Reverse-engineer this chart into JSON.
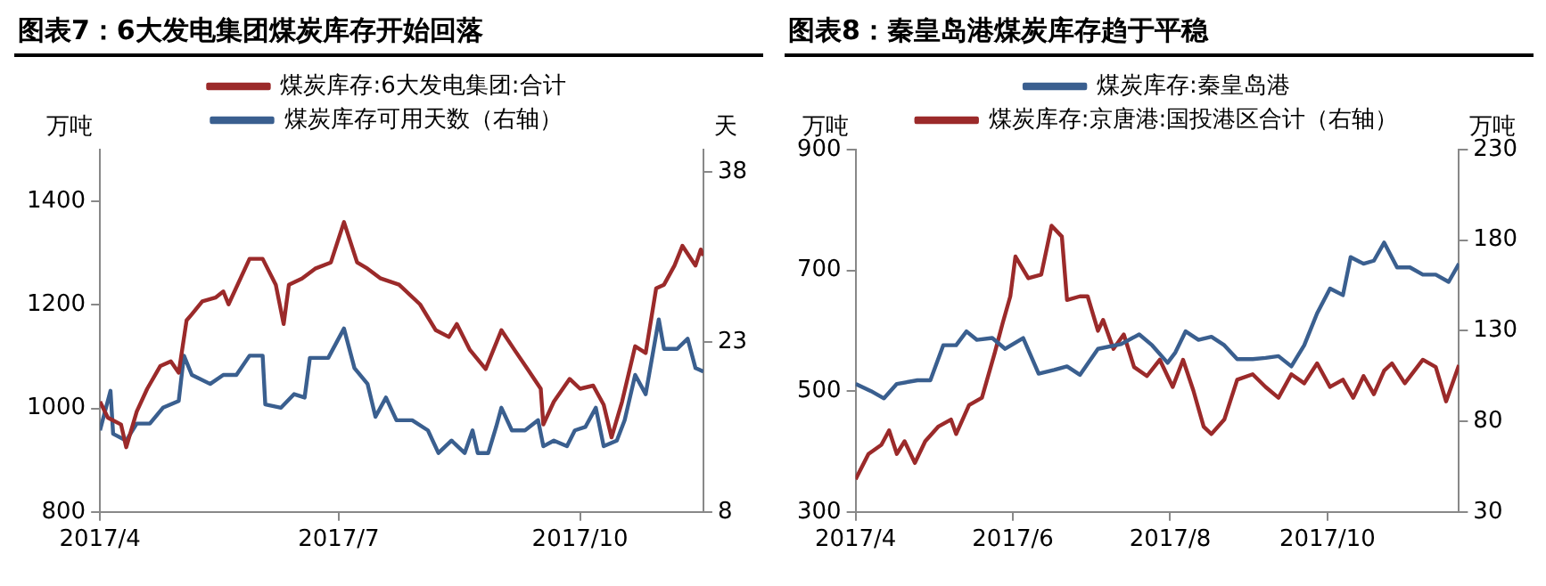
{
  "chart_data": [
    {
      "type": "line",
      "title": "图表7：6大发电集团煤炭库存开始回落",
      "ylabel": "万吨",
      "y2label": "天",
      "legend": "top",
      "grid": false,
      "marker": "none",
      "line_style": "solid",
      "xlim": [
        "2017-04-01",
        "2017-11-17"
      ],
      "xticks": [
        {
          "value": "2017-04-01",
          "label": "2017/4"
        },
        {
          "value": "2017-07-01",
          "label": "2017/7"
        },
        {
          "value": "2017-10-01",
          "label": "2017/10"
        }
      ],
      "ylim": [
        800,
        1500
      ],
      "yticks": [
        800,
        1000,
        1200,
        1400
      ],
      "y2lim": [
        8,
        40
      ],
      "y2ticks": [
        8,
        23,
        38
      ],
      "series": [
        {
          "name": "煤炭库存:6大发电集团:合计",
          "color": "#9b2a2a",
          "x": [
            "2017-04-01",
            "2017-04-04",
            "2017-04-09",
            "2017-04-11",
            "2017-04-15",
            "2017-04-19",
            "2017-04-24",
            "2017-04-28",
            "2017-05-01",
            "2017-05-04",
            "2017-05-06",
            "2017-05-10",
            "2017-05-15",
            "2017-05-18",
            "2017-05-20",
            "2017-05-28",
            "2017-06-02",
            "2017-06-07",
            "2017-06-10",
            "2017-06-12",
            "2017-06-17",
            "2017-06-22",
            "2017-06-28",
            "2017-07-03",
            "2017-07-08",
            "2017-07-12",
            "2017-07-17",
            "2017-07-24",
            "2017-08-01",
            "2017-08-07",
            "2017-08-12",
            "2017-08-15",
            "2017-08-20",
            "2017-08-26",
            "2017-09-01",
            "2017-09-06",
            "2017-09-11",
            "2017-09-16",
            "2017-09-17",
            "2017-09-21",
            "2017-09-27",
            "2017-10-01",
            "2017-10-06",
            "2017-10-10",
            "2017-10-13",
            "2017-10-17",
            "2017-10-22",
            "2017-10-26",
            "2017-10-30",
            "2017-11-02",
            "2017-11-06",
            "2017-11-09",
            "2017-11-14",
            "2017-11-16",
            "2017-11-17"
          ],
          "values": [
            1013,
            982,
            969,
            925,
            994,
            1038,
            1082,
            1091,
            1069,
            1170,
            1182,
            1207,
            1214,
            1226,
            1201,
            1289,
            1289,
            1239,
            1163,
            1239,
            1251,
            1270,
            1282,
            1360,
            1282,
            1270,
            1251,
            1239,
            1201,
            1151,
            1138,
            1163,
            1113,
            1076,
            1151,
            1113,
            1076,
            1038,
            969,
            1013,
            1057,
            1038,
            1044,
            1007,
            944,
            1013,
            1120,
            1107,
            1232,
            1239,
            1276,
            1314,
            1276,
            1307,
            1295
          ]
        },
        {
          "name": "煤炭库存可用天数（右轴）",
          "color": "#3a5f8f",
          "axis": "y2",
          "x": [
            "2017-04-01",
            "2017-04-05",
            "2017-04-06",
            "2017-04-11",
            "2017-04-15",
            "2017-04-20",
            "2017-04-25",
            "2017-05-01",
            "2017-05-03",
            "2017-05-06",
            "2017-05-13",
            "2017-05-18",
            "2017-05-23",
            "2017-05-28",
            "2017-06-02",
            "2017-06-03",
            "2017-06-09",
            "2017-06-14",
            "2017-06-18",
            "2017-06-20",
            "2017-06-27",
            "2017-07-03",
            "2017-07-07",
            "2017-07-12",
            "2017-07-15",
            "2017-07-19",
            "2017-07-23",
            "2017-07-29",
            "2017-08-04",
            "2017-08-08",
            "2017-08-13",
            "2017-08-18",
            "2017-08-21",
            "2017-08-23",
            "2017-08-27",
            "2017-08-30",
            "2017-09-01",
            "2017-09-05",
            "2017-09-10",
            "2017-09-15",
            "2017-09-17",
            "2017-09-21",
            "2017-09-26",
            "2017-09-29",
            "2017-10-03",
            "2017-10-07",
            "2017-10-10",
            "2017-10-15",
            "2017-10-18",
            "2017-10-22",
            "2017-10-26",
            "2017-10-31",
            "2017-11-02",
            "2017-11-07",
            "2017-11-11",
            "2017-11-14",
            "2017-11-17"
          ],
          "values": [
            15.2,
            18.7,
            14.9,
            14.3,
            15.8,
            15.8,
            17.2,
            17.8,
            21.8,
            20.1,
            19.3,
            20.1,
            20.1,
            21.8,
            21.8,
            17.5,
            17.2,
            18.4,
            18.1,
            21.6,
            21.6,
            24.2,
            20.7,
            19.3,
            16.4,
            18.1,
            16.1,
            16.1,
            15.2,
            13.2,
            14.3,
            13.2,
            15.2,
            13.2,
            13.2,
            15.5,
            17.2,
            15.2,
            15.2,
            16.1,
            13.8,
            14.3,
            13.8,
            15.2,
            15.5,
            17.2,
            13.8,
            14.3,
            16.1,
            20.1,
            18.4,
            25.0,
            22.4,
            22.4,
            23.3,
            20.7,
            20.4
          ]
        }
      ]
    },
    {
      "type": "line",
      "title": "图表8：秦皇岛港煤炭库存趋于平稳",
      "ylabel": "万吨",
      "y2label": "万吨",
      "legend": "top",
      "grid": false,
      "marker": "none",
      "line_style": "solid",
      "xlim": [
        "2017-04-01",
        "2017-11-21"
      ],
      "xticks": [
        {
          "value": "2017-04-01",
          "label": "2017/4"
        },
        {
          "value": "2017-06-01",
          "label": "2017/6"
        },
        {
          "value": "2017-08-01",
          "label": "2017/8"
        },
        {
          "value": "2017-10-01",
          "label": "2017/10"
        }
      ],
      "ylim": [
        300,
        900
      ],
      "yticks": [
        300,
        500,
        700,
        900
      ],
      "y2lim": [
        30,
        230
      ],
      "y2ticks": [
        30,
        80,
        130,
        180,
        230
      ],
      "series": [
        {
          "name": "煤炭库存:秦皇岛港",
          "color": "#3a5f8f",
          "x": [
            "2017-04-01",
            "2017-04-07",
            "2017-04-12",
            "2017-04-17",
            "2017-04-25",
            "2017-04-30",
            "2017-05-05",
            "2017-05-10",
            "2017-05-14",
            "2017-05-18",
            "2017-05-24",
            "2017-05-29",
            "2017-06-05",
            "2017-06-11",
            "2017-06-17",
            "2017-06-22",
            "2017-06-27",
            "2017-07-04",
            "2017-07-13",
            "2017-07-20",
            "2017-07-25",
            "2017-07-31",
            "2017-08-03",
            "2017-08-07",
            "2017-08-12",
            "2017-08-17",
            "2017-08-22",
            "2017-08-27",
            "2017-09-02",
            "2017-09-07",
            "2017-09-12",
            "2017-09-17",
            "2017-09-22",
            "2017-09-27",
            "2017-10-02",
            "2017-10-07",
            "2017-10-10",
            "2017-10-15",
            "2017-10-19",
            "2017-10-23",
            "2017-10-28",
            "2017-11-02",
            "2017-11-07",
            "2017-11-12",
            "2017-11-17",
            "2017-11-21"
          ],
          "values": [
            512,
            500,
            488,
            512,
            518,
            518,
            576,
            576,
            599,
            585,
            588,
            570,
            588,
            529,
            535,
            541,
            527,
            570,
            578,
            594,
            576,
            547,
            564,
            599,
            585,
            590,
            576,
            553,
            553,
            555,
            558,
            541,
            576,
            629,
            670,
            659,
            722,
            711,
            716,
            746,
            705,
            705,
            693,
            693,
            681,
            711
          ]
        },
        {
          "name": "煤炭库存:京唐港:国投港区合计（右轴）",
          "color": "#9b2a2a",
          "axis": "y2",
          "x": [
            "2017-04-01",
            "2017-04-06",
            "2017-04-11",
            "2017-04-14",
            "2017-04-17",
            "2017-04-20",
            "2017-04-24",
            "2017-04-28",
            "2017-05-03",
            "2017-05-08",
            "2017-05-10",
            "2017-05-15",
            "2017-05-20",
            "2017-05-25",
            "2017-05-28",
            "2017-05-31",
            "2017-06-02",
            "2017-06-07",
            "2017-06-12",
            "2017-06-16",
            "2017-06-20",
            "2017-06-22",
            "2017-06-27",
            "2017-06-30",
            "2017-07-04",
            "2017-07-06",
            "2017-07-10",
            "2017-07-14",
            "2017-07-18",
            "2017-07-23",
            "2017-07-28",
            "2017-08-02",
            "2017-08-06",
            "2017-08-10",
            "2017-08-14",
            "2017-08-17",
            "2017-08-22",
            "2017-08-27",
            "2017-09-02",
            "2017-09-07",
            "2017-09-12",
            "2017-09-17",
            "2017-09-22",
            "2017-09-27",
            "2017-10-02",
            "2017-10-07",
            "2017-10-11",
            "2017-10-15",
            "2017-10-19",
            "2017-10-23",
            "2017-10-26",
            "2017-10-31",
            "2017-11-07",
            "2017-11-12",
            "2017-11-16",
            "2017-11-18",
            "2017-11-21"
          ],
          "values": [
            48,
            62,
            67,
            75,
            62,
            69,
            57,
            69,
            77,
            81,
            73,
            89,
            93,
            118,
            134,
            149,
            171,
            159,
            161,
            188,
            182,
            147,
            149,
            149,
            130,
            136,
            120,
            128,
            110,
            105,
            114,
            99,
            114,
            97,
            77,
            73,
            81,
            103,
            106,
            99,
            93,
            106,
            101,
            112,
            99,
            103,
            93,
            105,
            95,
            108,
            112,
            101,
            114,
            110,
            91,
            99,
            111
          ]
        }
      ]
    }
  ]
}
